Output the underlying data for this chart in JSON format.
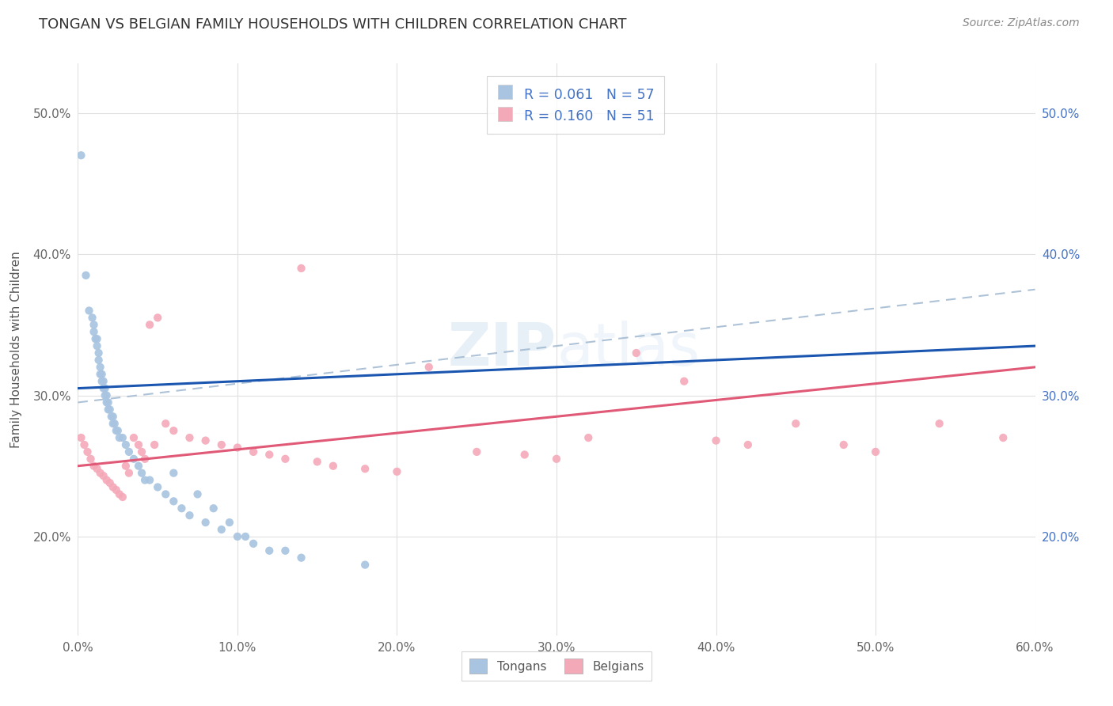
{
  "title": "TONGAN VS BELGIAN FAMILY HOUSEHOLDS WITH CHILDREN CORRELATION CHART",
  "source_text": "Source: ZipAtlas.com",
  "ylabel": "Family Households with Children",
  "x_min": 0.0,
  "x_max": 0.6,
  "y_min": 0.13,
  "y_max": 0.535,
  "x_tick_labels": [
    "0.0%",
    "10.0%",
    "20.0%",
    "30.0%",
    "40.0%",
    "50.0%",
    "60.0%"
  ],
  "x_tick_values": [
    0.0,
    0.1,
    0.2,
    0.3,
    0.4,
    0.5,
    0.6
  ],
  "y_tick_labels": [
    "20.0%",
    "30.0%",
    "40.0%",
    "50.0%"
  ],
  "y_tick_values": [
    0.2,
    0.3,
    0.4,
    0.5
  ],
  "tongan_color": "#a8c4e0",
  "belgian_color": "#f4a9b8",
  "tongan_line_color": "#1a56b0",
  "belgian_line_color": "#e05a78",
  "dashed_line_color": "#a0b8d0",
  "tongan_r": 0.061,
  "tongan_n": 57,
  "belgian_r": 0.16,
  "belgian_n": 51,
  "legend_label_tongan": "Tongans",
  "legend_label_belgian": "Belgians",
  "background_color": "#ffffff",
  "grid_color": "#e0e0e0",
  "tongan_x": [
    0.002,
    0.005,
    0.007,
    0.009,
    0.01,
    0.01,
    0.011,
    0.012,
    0.012,
    0.013,
    0.013,
    0.014,
    0.014,
    0.015,
    0.015,
    0.016,
    0.016,
    0.017,
    0.017,
    0.018,
    0.018,
    0.019,
    0.019,
    0.02,
    0.021,
    0.022,
    0.022,
    0.023,
    0.024,
    0.025,
    0.026,
    0.028,
    0.03,
    0.032,
    0.035,
    0.038,
    0.04,
    0.042,
    0.045,
    0.05,
    0.055,
    0.06,
    0.065,
    0.07,
    0.08,
    0.09,
    0.1,
    0.11,
    0.12,
    0.14,
    0.06,
    0.075,
    0.085,
    0.095,
    0.105,
    0.13,
    0.18
  ],
  "tongan_y": [
    0.47,
    0.385,
    0.36,
    0.355,
    0.35,
    0.345,
    0.34,
    0.34,
    0.335,
    0.33,
    0.325,
    0.32,
    0.315,
    0.315,
    0.31,
    0.31,
    0.305,
    0.305,
    0.3,
    0.3,
    0.295,
    0.295,
    0.29,
    0.29,
    0.285,
    0.285,
    0.28,
    0.28,
    0.275,
    0.275,
    0.27,
    0.27,
    0.265,
    0.26,
    0.255,
    0.25,
    0.245,
    0.24,
    0.24,
    0.235,
    0.23,
    0.225,
    0.22,
    0.215,
    0.21,
    0.205,
    0.2,
    0.195,
    0.19,
    0.185,
    0.245,
    0.23,
    0.22,
    0.21,
    0.2,
    0.19,
    0.18
  ],
  "belgian_x": [
    0.002,
    0.004,
    0.006,
    0.008,
    0.01,
    0.012,
    0.014,
    0.016,
    0.018,
    0.02,
    0.022,
    0.024,
    0.026,
    0.028,
    0.03,
    0.032,
    0.035,
    0.038,
    0.04,
    0.042,
    0.045,
    0.048,
    0.05,
    0.055,
    0.06,
    0.07,
    0.08,
    0.09,
    0.1,
    0.11,
    0.12,
    0.13,
    0.14,
    0.15,
    0.16,
    0.18,
    0.2,
    0.22,
    0.25,
    0.28,
    0.3,
    0.32,
    0.35,
    0.38,
    0.4,
    0.42,
    0.45,
    0.48,
    0.5,
    0.54,
    0.58
  ],
  "belgian_y": [
    0.27,
    0.265,
    0.26,
    0.255,
    0.25,
    0.248,
    0.245,
    0.243,
    0.24,
    0.238,
    0.235,
    0.233,
    0.23,
    0.228,
    0.25,
    0.245,
    0.27,
    0.265,
    0.26,
    0.255,
    0.35,
    0.265,
    0.355,
    0.28,
    0.275,
    0.27,
    0.268,
    0.265,
    0.263,
    0.26,
    0.258,
    0.255,
    0.39,
    0.253,
    0.25,
    0.248,
    0.246,
    0.32,
    0.26,
    0.258,
    0.255,
    0.27,
    0.33,
    0.31,
    0.268,
    0.265,
    0.28,
    0.265,
    0.26,
    0.28,
    0.27
  ],
  "tongan_trend": [
    0.305,
    0.335
  ],
  "belgian_trend": [
    0.25,
    0.32
  ],
  "dashed_trend": [
    0.295,
    0.375
  ]
}
